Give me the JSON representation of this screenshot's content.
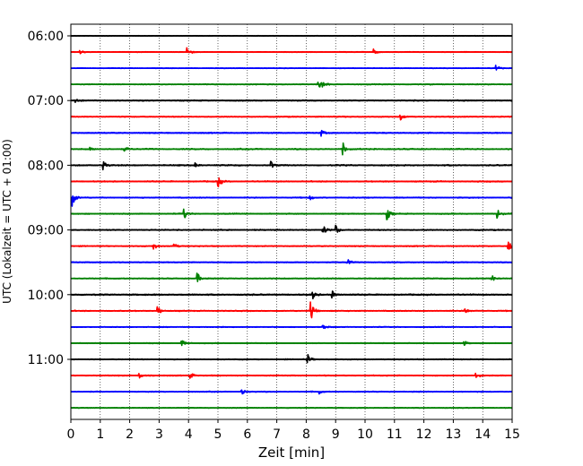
{
  "chart_data": {
    "type": "line",
    "title": "",
    "xlabel": "Zeit  [min]",
    "ylabel": "UTC (Lokalzeit = UTC + 01:00)",
    "xlim": [
      0,
      15
    ],
    "x_ticks": [
      "0",
      "1",
      "2",
      "3",
      "4",
      "5",
      "6",
      "7",
      "8",
      "9",
      "10",
      "11",
      "12",
      "13",
      "14",
      "15"
    ],
    "y_ticks": [
      "06:00",
      "07:00",
      "08:00",
      "09:00",
      "10:00",
      "11:00"
    ],
    "grid": "vertical dotted",
    "trace_interval_min": 15,
    "trace_colors": [
      "#000000",
      "#ff0000",
      "#0000ff",
      "#008000"
    ],
    "traces": [
      {
        "time": "06:00",
        "events": [],
        "noise": 0.25
      },
      {
        "time": "06:15",
        "events": [
          [
            0.3,
            0.5
          ],
          [
            3.95,
            1.2
          ],
          [
            10.3,
            0.6
          ]
        ],
        "noise": 0.35
      },
      {
        "time": "06:30",
        "events": [
          [
            14.45,
            0.9
          ]
        ],
        "noise": 0.3
      },
      {
        "time": "06:45",
        "events": [
          [
            8.4,
            1.3
          ],
          [
            8.55,
            0.8
          ]
        ],
        "noise": 0.45
      },
      {
        "time": "07:00",
        "events": [
          [
            0.1,
            1.0
          ]
        ],
        "noise": 0.5
      },
      {
        "time": "07:15",
        "events": [
          [
            11.2,
            0.6
          ]
        ],
        "noise": 0.45
      },
      {
        "time": "07:30",
        "events": [
          [
            8.5,
            0.6
          ]
        ],
        "noise": 0.55
      },
      {
        "time": "07:45",
        "events": [
          [
            9.25,
            1.1
          ],
          [
            1.8,
            0.5
          ],
          [
            0.6,
            0.4
          ]
        ],
        "noise": 0.6
      },
      {
        "time": "08:00",
        "events": [
          [
            1.1,
            0.8
          ],
          [
            6.8,
            0.7
          ],
          [
            4.2,
            0.5
          ]
        ],
        "noise": 0.6
      },
      {
        "time": "08:15",
        "events": [
          [
            5.0,
            1.3
          ]
        ],
        "noise": 0.55
      },
      {
        "time": "08:30",
        "events": [
          [
            0.05,
            1.6
          ],
          [
            8.1,
            0.6
          ]
        ],
        "noise": 0.5
      },
      {
        "time": "08:45",
        "events": [
          [
            3.85,
            1.0
          ],
          [
            10.75,
            1.2
          ],
          [
            14.5,
            0.9
          ]
        ],
        "noise": 0.5
      },
      {
        "time": "09:00",
        "events": [
          [
            8.55,
            1.2
          ],
          [
            9.0,
            0.9
          ]
        ],
        "noise": 0.55
      },
      {
        "time": "09:15",
        "events": [
          [
            2.8,
            0.8
          ],
          [
            3.5,
            0.6
          ],
          [
            14.85,
            1.3
          ]
        ],
        "noise": 0.5
      },
      {
        "time": "09:30",
        "events": [
          [
            9.4,
            0.7
          ]
        ],
        "noise": 0.45
      },
      {
        "time": "09:45",
        "events": [
          [
            4.3,
            1.0
          ],
          [
            14.3,
            0.7
          ]
        ],
        "noise": 0.45
      },
      {
        "time": "10:00",
        "events": [
          [
            8.2,
            1.0
          ],
          [
            8.85,
            1.0
          ]
        ],
        "noise": 0.6
      },
      {
        "time": "10:15",
        "events": [
          [
            2.95,
            0.9
          ],
          [
            8.15,
            2.2
          ],
          [
            13.35,
            0.9
          ]
        ],
        "noise": 0.5
      },
      {
        "time": "10:30",
        "events": [
          [
            8.55,
            0.8
          ]
        ],
        "noise": 0.4
      },
      {
        "time": "10:45",
        "events": [
          [
            3.75,
            0.9
          ],
          [
            13.35,
            0.6
          ]
        ],
        "noise": 0.4
      },
      {
        "time": "11:00",
        "events": [
          [
            8.05,
            0.9
          ]
        ],
        "noise": 0.45
      },
      {
        "time": "11:15",
        "events": [
          [
            2.3,
            0.7
          ],
          [
            4.05,
            0.8
          ],
          [
            13.75,
            1.0
          ]
        ],
        "noise": 0.5
      },
      {
        "time": "11:30",
        "events": [
          [
            5.8,
            0.6
          ],
          [
            8.4,
            0.7
          ]
        ],
        "noise": 0.45
      },
      {
        "time": "11:45",
        "events": [],
        "noise": 0.35
      }
    ]
  }
}
